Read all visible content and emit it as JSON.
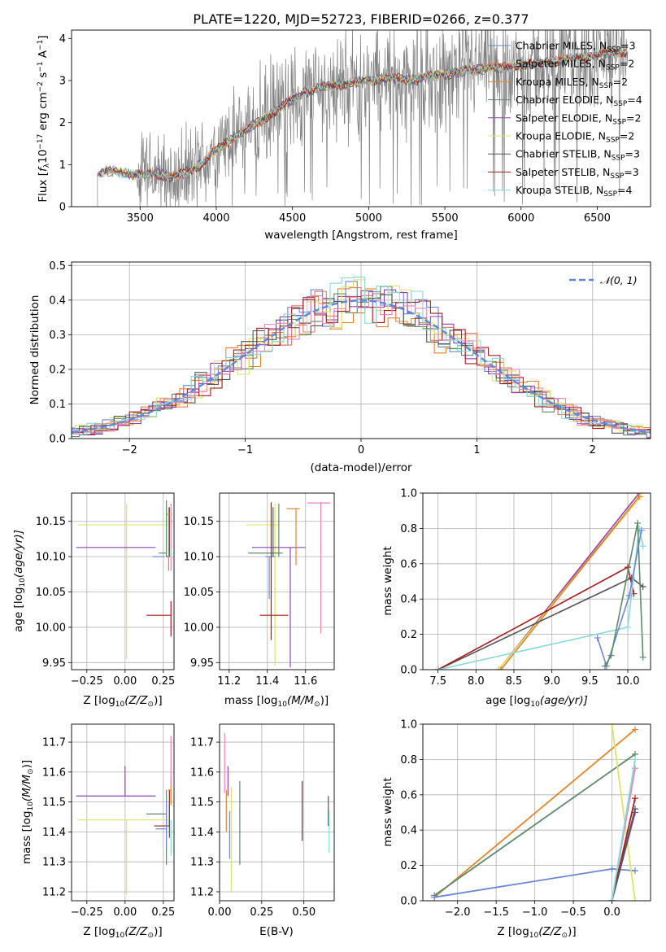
{
  "title": "PLATE=1220, MJD=52723, FIBERID=0266, z=0.377",
  "colors": {
    "Chabrier MILES": "#6b87d6",
    "Salpeter MILES": "#e07a5f",
    "Kroupa MILES": "#e0862c",
    "Chabrier ELODIE": "#5e8a6a",
    "Salpeter ELODIE": "#8e44ad",
    "Kroupa ELODIE": "#dde36a",
    "Chabrier STELIB": "#555555",
    "Salpeter STELIB": "#a31d1d",
    "Kroupa STELIB": "#86dada",
    "pink": "#e884b8",
    "data": "#808080",
    "normal": "#5b8bd8"
  },
  "chart_data": [
    {
      "id": "spectrum",
      "type": "line",
      "xlabel": "wavelength [Angstrom, rest frame]",
      "ylabel": "Flux [f_λ 10^-17 erg cm^-2 s^-1 A^-1]",
      "xlim": [
        3050,
        6850
      ],
      "ylim": [
        0,
        4.2
      ],
      "xticks": [
        3500,
        4000,
        4500,
        5000,
        5500,
        6000,
        6500
      ],
      "yticks": [
        0,
        1,
        2,
        3,
        4
      ],
      "continuum": {
        "x": [
          3220,
          3250,
          3300,
          3400,
          3500,
          3600,
          3700,
          3800,
          3900,
          4000,
          4100,
          4200,
          4300,
          4400,
          4500,
          4600,
          4700,
          4800,
          4900,
          5000,
          5100,
          5200,
          5300,
          5400,
          5500,
          5600,
          5700,
          5800,
          5900,
          6000,
          6100,
          6200,
          6300,
          6400,
          6500,
          6600,
          6700
        ],
        "y": [
          0.75,
          0.82,
          0.85,
          0.8,
          0.75,
          0.8,
          0.7,
          0.8,
          1.0,
          1.35,
          1.6,
          1.85,
          2.05,
          2.3,
          2.55,
          2.75,
          2.85,
          2.9,
          2.95,
          3.0,
          3.05,
          3.05,
          3.0,
          3.1,
          3.15,
          3.2,
          3.25,
          3.3,
          3.3,
          3.35,
          3.4,
          3.45,
          3.5,
          3.55,
          3.6,
          3.65,
          3.7
        ]
      },
      "legend_position": "upper-right",
      "legend": [
        {
          "label": "Chabrier MILES, ",
          "n": "3"
        },
        {
          "label": "Salpeter MILES, ",
          "n": "2"
        },
        {
          "label": "Kroupa MILES, ",
          "n": "2"
        },
        {
          "label": "Chabrier ELODIE, ",
          "n": "4"
        },
        {
          "label": "Salpeter ELODIE, ",
          "n": "2"
        },
        {
          "label": "Kroupa ELODIE, ",
          "n": "2"
        },
        {
          "label": "Chabrier STELIB, ",
          "n": "3"
        },
        {
          "label": "Salpeter STELIB, ",
          "n": "3"
        },
        {
          "label": "Kroupa STELIB, ",
          "n": "4"
        }
      ],
      "legend_n_prefix": "N",
      "legend_n_sub": "SSP",
      "legend_n_suffix": "="
    },
    {
      "id": "residuals",
      "type": "bar",
      "xlabel": "(data-model)/error",
      "ylabel": "Normed distribution",
      "xlim": [
        -2.5,
        2.5
      ],
      "ylim": [
        0,
        0.51
      ],
      "xticks": [
        -2,
        -1,
        0,
        1,
        2
      ],
      "yticks": [
        0.0,
        0.1,
        0.2,
        0.3,
        0.4,
        0.5
      ],
      "grid": true,
      "legend_position": "upper-right",
      "normal_label": "𝒩(0, 1)",
      "normal": {
        "mu": 0,
        "sigma": 1
      }
    },
    {
      "id": "age-vs-Z",
      "type": "scatter",
      "xlabel": "Z [log10(Z/Z⊙)]",
      "ylabel": "age  [log10(age/yr)]",
      "xlim": [
        -0.35,
        0.32
      ],
      "ylim": [
        9.94,
        10.19
      ],
      "xticks": [
        -0.25,
        0.0,
        0.25
      ],
      "yticks": [
        9.95,
        10.0,
        10.05,
        10.1,
        10.15
      ],
      "grid": true,
      "points": [
        {
          "series": "Kroupa ELODIE",
          "x": 0.01,
          "y": 10.145,
          "xerr": [
            0.32,
            0.27
          ],
          "yerr": [
            0.19,
            0.03
          ]
        },
        {
          "series": "Salpeter ELODIE",
          "x": 0.2,
          "y": 10.113,
          "xerr": [
            0.52,
            0.0
          ],
          "yerr": [
            0.0,
            0.0
          ]
        },
        {
          "series": "Chabrier MILES",
          "x": 0.26,
          "y": 10.1,
          "xerr": [
            0.08,
            0.0
          ],
          "yerr": [
            0.0,
            0.0
          ]
        },
        {
          "series": "Chabrier ELODIE",
          "x": 0.27,
          "y": 10.105,
          "xerr": [
            0.05,
            0.0
          ],
          "yerr": [
            0.005,
            0.075
          ]
        },
        {
          "series": "Chabrier STELIB",
          "x": 0.29,
          "y": 10.1,
          "xerr": [
            0.02,
            0.0
          ],
          "yerr": [
            0.0,
            0.07
          ]
        },
        {
          "series": "Kroupa MILES",
          "x": 0.285,
          "y": 10.16,
          "xerr": [
            0.01,
            0.01
          ],
          "yerr": [
            0.08,
            0.01
          ]
        },
        {
          "series": "pink",
          "x": 0.3,
          "y": 10.16,
          "xerr": [
            0.0,
            0.0
          ],
          "yerr": [
            0.08,
            0.015
          ]
        },
        {
          "series": "Salpeter STELIB",
          "x": 0.3,
          "y": 10.017,
          "xerr": [
            0.16,
            0.0
          ],
          "yerr": [
            0.03,
            0.02
          ]
        },
        {
          "series": "Kroupa STELIB",
          "x": 0.3,
          "y": 10.1,
          "xerr": [
            0.0,
            0.0
          ],
          "yerr": [
            0.0,
            0.01
          ]
        }
      ]
    },
    {
      "id": "age-vs-mass",
      "type": "scatter",
      "xlabel": "mass [log10(M/M⊙)]",
      "ylabel": "",
      "xlim": [
        11.15,
        11.75
      ],
      "ylim": [
        9.94,
        10.19
      ],
      "xticks": [
        11.2,
        11.4,
        11.6
      ],
      "yticks": [
        9.95,
        10.0,
        10.05,
        10.1,
        10.15
      ],
      "grid": true,
      "points": [
        {
          "series": "Kroupa ELODIE",
          "x": 11.44,
          "y": 10.145,
          "xerr": [
            0.15,
            0.02
          ],
          "yerr": [
            0.2,
            0.03
          ]
        },
        {
          "series": "Salpeter ELODIE",
          "x": 11.52,
          "y": 10.113,
          "xerr": [
            0.2,
            0.08
          ],
          "yerr": [
            0.17,
            0.0
          ]
        },
        {
          "series": "Chabrier MILES",
          "x": 11.41,
          "y": 10.1,
          "xerr": [
            0.02,
            0.03
          ],
          "yerr": [
            0.06,
            0.0
          ]
        },
        {
          "series": "Chabrier ELODIE",
          "x": 11.46,
          "y": 10.105,
          "xerr": [
            0.16,
            0.02
          ],
          "yerr": [
            0.005,
            0.07
          ]
        },
        {
          "series": "Chabrier STELIB",
          "x": 11.43,
          "y": 10.1,
          "xerr": [
            0.0,
            0.0
          ],
          "yerr": [
            0.0,
            0.07
          ]
        },
        {
          "series": "Kroupa MILES",
          "x": 11.55,
          "y": 10.168,
          "xerr": [
            0.05,
            0.02
          ],
          "yerr": [
            0.08,
            0.0
          ]
        },
        {
          "series": "pink",
          "x": 11.68,
          "y": 10.176,
          "xerr": [
            0.07,
            0.05
          ],
          "yerr": [
            0.185,
            0.0
          ]
        },
        {
          "series": "Salpeter STELIB",
          "x": 11.42,
          "y": 10.017,
          "xerr": [
            0.06,
            0.09
          ],
          "yerr": [
            0.035,
            0.16
          ]
        },
        {
          "series": "Kroupa STELIB",
          "x": 11.4,
          "y": 10.1,
          "xerr": [
            0.0,
            0.0
          ],
          "yerr": [
            0.0,
            0.0
          ]
        }
      ]
    },
    {
      "id": "weight-vs-age",
      "type": "line",
      "xlabel": "age  [log10(age/yr)]",
      "ylabel": "mass weight",
      "xlim": [
        7.3,
        10.3
      ],
      "ylim": [
        0,
        1
      ],
      "xticks": [
        7.5,
        8.0,
        8.5,
        9.0,
        9.5,
        10.0
      ],
      "yticks": [
        0.0,
        0.2,
        0.4,
        0.6,
        0.8,
        1.0
      ],
      "grid": true,
      "series": [
        {
          "name": "Salpeter ELODIE",
          "x": [
            8.3,
            10.15
          ],
          "y": [
            0.0,
            1.0
          ]
        },
        {
          "name": "Salpeter MILES",
          "x": [
            8.3,
            10.15
          ],
          "y": [
            0.0,
            0.98
          ]
        },
        {
          "name": "Kroupa ELODIE",
          "x": [
            8.3,
            10.17
          ],
          "y": [
            0.0,
            0.98
          ]
        },
        {
          "name": "Kroupa MILES",
          "x": [
            8.33,
            10.15
          ],
          "y": [
            0.0,
            0.98
          ]
        },
        {
          "name": "Chabrier STELIB",
          "x": [
            7.5,
            10.05,
            10.2
          ],
          "y": [
            0.0,
            0.52,
            0.47
          ]
        },
        {
          "name": "Salpeter STELIB",
          "x": [
            7.5,
            10.0,
            10.08
          ],
          "y": [
            0.0,
            0.58,
            0.43
          ]
        },
        {
          "name": "Kroupa STELIB",
          "x": [
            7.5,
            10.0,
            10.15,
            10.2
          ],
          "y": [
            0.0,
            0.24,
            0.8,
            0.7
          ]
        },
        {
          "name": "Chabrier MILES",
          "x": [
            9.6,
            9.72,
            10.02,
            10.18
          ],
          "y": [
            0.18,
            0.02,
            0.42,
            0.79
          ]
        },
        {
          "name": "Chabrier ELODIE",
          "x": [
            9.7,
            9.78,
            10.13,
            10.2
          ],
          "y": [
            0.02,
            0.08,
            0.83,
            0.07
          ]
        }
      ]
    },
    {
      "id": "mass-vs-Z",
      "type": "scatter",
      "xlabel": "Z [log10(Z/Z⊙)]",
      "ylabel": "mass [log10(M/M⊙)]",
      "xlim": [
        -0.35,
        0.32
      ],
      "ylim": [
        11.17,
        11.76
      ],
      "xticks": [
        -0.25,
        0.0,
        0.25
      ],
      "yticks": [
        11.2,
        11.3,
        11.4,
        11.5,
        11.6,
        11.7
      ],
      "grid": true,
      "points": [
        {
          "series": "Salpeter ELODIE",
          "x": 0.0,
          "y": 11.52,
          "xerr": [
            0.32,
            0.2
          ],
          "yerr": [
            0.0,
            0.1
          ]
        },
        {
          "series": "Kroupa ELODIE",
          "x": 0.01,
          "y": 11.44,
          "xerr": [
            0.32,
            0.27
          ],
          "yerr": [
            0.25,
            0.0
          ]
        },
        {
          "series": "Chabrier ELODIE",
          "x": 0.27,
          "y": 11.46,
          "xerr": [
            0.13,
            0.0
          ],
          "yerr": [
            0.17,
            0.08
          ]
        },
        {
          "series": "Salpeter STELIB",
          "x": 0.29,
          "y": 11.42,
          "xerr": [
            0.1,
            0.0
          ],
          "yerr": [
            0.0,
            0.12
          ]
        },
        {
          "series": "Chabrier MILES",
          "x": 0.27,
          "y": 11.41,
          "xerr": [
            0.07,
            0.0
          ],
          "yerr": [
            0.06,
            0.1
          ]
        },
        {
          "series": "Kroupa MILES",
          "x": 0.3,
          "y": 11.54,
          "xerr": [
            0.02,
            0.0
          ],
          "yerr": [
            0.05,
            0.04
          ]
        },
        {
          "series": "pink",
          "x": 0.3,
          "y": 11.65,
          "xerr": [
            0.0,
            0.0
          ],
          "yerr": [
            0.1,
            0.07
          ]
        },
        {
          "series": "Chabrier STELIB",
          "x": 0.29,
          "y": 11.45,
          "xerr": [
            0.0,
            0.0
          ],
          "yerr": [
            0.07,
            0.05
          ]
        },
        {
          "series": "Kroupa STELIB",
          "x": 0.3,
          "y": 11.38,
          "xerr": [
            0.0,
            0.0
          ],
          "yerr": [
            0.06,
            0.06
          ]
        }
      ]
    },
    {
      "id": "mass-vs-ebv",
      "type": "scatter",
      "xlabel": "E(B-V)",
      "ylabel": "",
      "xlim": [
        0.0,
        0.68
      ],
      "ylim": [
        11.17,
        11.76
      ],
      "xticks": [
        0.0,
        0.25,
        0.5
      ],
      "yticks": [
        11.2,
        11.3,
        11.4,
        11.5,
        11.6,
        11.7
      ],
      "grid": true,
      "points": [
        {
          "series": "pink",
          "x": 0.03,
          "y": 11.63,
          "xerr": [
            0.0,
            0.0
          ],
          "yerr": [
            0.1,
            0.1
          ]
        },
        {
          "series": "Salpeter ELODIE",
          "x": 0.05,
          "y": 11.57,
          "xerr": [
            0.0,
            0.0
          ],
          "yerr": [
            0.05,
            0.05
          ]
        },
        {
          "series": "Kroupa MILES",
          "x": 0.04,
          "y": 11.47,
          "xerr": [
            0.0,
            0.0
          ],
          "yerr": [
            0.07,
            0.07
          ]
        },
        {
          "series": "Chabrier MILES",
          "x": 0.06,
          "y": 11.39,
          "xerr": [
            0.0,
            0.0
          ],
          "yerr": [
            0.08,
            0.08
          ]
        },
        {
          "series": "Kroupa ELODIE",
          "x": 0.07,
          "y": 11.4,
          "xerr": [
            0.0,
            0.0
          ],
          "yerr": [
            0.2,
            0.15
          ]
        },
        {
          "series": "Chabrier ELODIE",
          "x": 0.12,
          "y": 11.43,
          "xerr": [
            0.0,
            0.0
          ],
          "yerr": [
            0.14,
            0.14
          ]
        },
        {
          "series": "Salpeter STELIB",
          "x": 0.49,
          "y": 11.47,
          "xerr": [
            0.0,
            0.0
          ],
          "yerr": [
            0.1,
            0.1
          ]
        },
        {
          "series": "Chabrier STELIB",
          "x": 0.645,
          "y": 11.47,
          "xerr": [
            0.0,
            0.0
          ],
          "yerr": [
            0.05,
            0.05
          ]
        },
        {
          "series": "Kroupa STELIB",
          "x": 0.65,
          "y": 11.4,
          "xerr": [
            0.0,
            0.0
          ],
          "yerr": [
            0.07,
            0.07
          ]
        }
      ]
    },
    {
      "id": "weight-vs-Z",
      "type": "line",
      "xlabel": "Z [log10(Z/Z⊙)]",
      "ylabel": "mass weight",
      "xlim": [
        -2.45,
        0.5
      ],
      "ylim": [
        0,
        1
      ],
      "xticks": [
        -2.0,
        -1.5,
        -1.0,
        -0.5,
        0.0
      ],
      "yticks": [
        0.0,
        0.2,
        0.4,
        0.6,
        0.8,
        1.0
      ],
      "grid": true,
      "series": [
        {
          "name": "Kroupa MILES",
          "x": [
            -2.3,
            0.3
          ],
          "y": [
            0.02,
            0.97
          ]
        },
        {
          "name": "Chabrier ELODIE",
          "x": [
            -2.3,
            0.3
          ],
          "y": [
            0.03,
            0.83
          ]
        },
        {
          "name": "Chabrier MILES",
          "x": [
            -2.3,
            0.0,
            0.3
          ],
          "y": [
            0.02,
            0.18,
            0.17
          ]
        },
        {
          "name": "Kroupa ELODIE",
          "x": [
            0.0,
            0.3
          ],
          "y": [
            1.0,
            0.0
          ]
        },
        {
          "name": "pink",
          "x": [
            0.0,
            0.3
          ],
          "y": [
            0.0,
            0.75
          ]
        },
        {
          "name": "Salpeter ELODIE",
          "x": [
            0.0,
            0.3
          ],
          "y": [
            0.0,
            0.5
          ]
        },
        {
          "name": "Salpeter STELIB",
          "x": [
            0.0,
            0.3
          ],
          "y": [
            0.0,
            0.58
          ]
        },
        {
          "name": "Chabrier STELIB",
          "x": [
            0.0,
            0.3
          ],
          "y": [
            0.0,
            0.52
          ]
        },
        {
          "name": "Kroupa STELIB",
          "x": [
            0.0,
            0.3
          ],
          "y": [
            0.0,
            0.8
          ]
        }
      ]
    }
  ],
  "fig_axis_labels": {
    "p1_ylabel_main": "Flux [",
    "p1_ylabel_f": "f",
    "p1_ylabel_lambda": "λ",
    "p1_ylabel_unit1": "10",
    "p1_ylabel_exp1": "−17",
    "p1_ylabel_unit2": " erg cm",
    "p1_ylabel_exp2": "−2",
    "p1_ylabel_unit3": " s",
    "p1_ylabel_exp3": "−1",
    "p1_ylabel_unit4": " A",
    "p1_ylabel_exp4": "−1",
    "p1_ylabel_end": "]",
    "age_label_main": "age  [log",
    "age_label_sub": "10",
    "age_label_rest": "(age/yr)]",
    "z_label_main": "Z [log",
    "z_label_sub": "10",
    "z_label_rest": "(Z/Z",
    "z_label_sun": "⊙",
    "z_label_end": ")]",
    "mass_label_main": "mass [log",
    "mass_label_sub": "10",
    "mass_label_rest": "(M/M",
    "mass_label_sun": "⊙",
    "mass_label_end": ")]"
  }
}
